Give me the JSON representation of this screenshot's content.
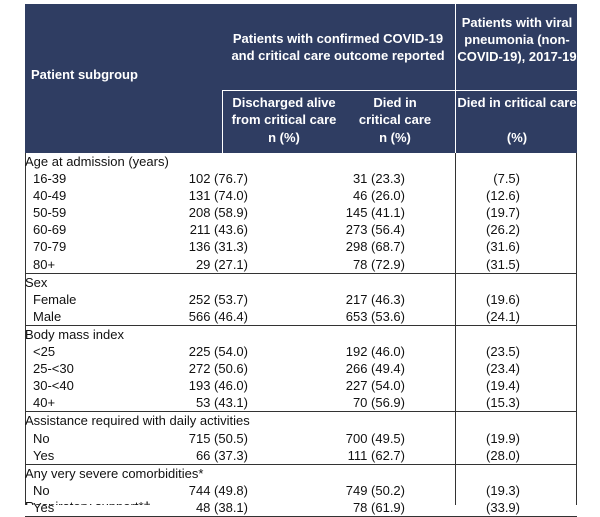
{
  "header": {
    "subgroup": "Patient subgroup",
    "covid_group": "Patients with confirmed COVID-19 and critical care outcome reported",
    "viral_group": "Patients with viral pneumonia (non-COVID-19), 2017-19",
    "col1_title": "Discharged alive from critical care",
    "col2_title": "Died in critical care",
    "col3_title": "Died in critical care",
    "col1_unit": "n (%)",
    "col2_unit": "n (%)",
    "col3_unit": "(%)"
  },
  "sections": [
    {
      "title": "Age at admission (years)",
      "rows": [
        {
          "label": "16-39",
          "c1": "102 (76.7)",
          "c2": "31 (23.3)",
          "c3": "(7.5)"
        },
        {
          "label": "40-49",
          "c1": "131 (74.0)",
          "c2": "46 (26.0)",
          "c3": "(12.6)"
        },
        {
          "label": "50-59",
          "c1": "208 (58.9)",
          "c2": "145 (41.1)",
          "c3": "(19.7)"
        },
        {
          "label": "60-69",
          "c1": "211 (43.6)",
          "c2": "273 (56.4)",
          "c3": "(26.2)"
        },
        {
          "label": "70-79",
          "c1": "136 (31.3)",
          "c2": "298 (68.7)",
          "c3": "(31.6)"
        },
        {
          "label": "80+",
          "c1": "29 (27.1)",
          "c2": "78 (72.9)",
          "c3": "(31.5)"
        }
      ]
    },
    {
      "title": "Sex",
      "rows": [
        {
          "label": "Female",
          "c1": "252 (53.7)",
          "c2": "217 (46.3)",
          "c3": "(19.6)"
        },
        {
          "label": "Male",
          "c1": "566 (46.4)",
          "c2": "653 (53.6)",
          "c3": "(24.1)"
        }
      ]
    },
    {
      "title": "Body mass index",
      "rows": [
        {
          "label": "<25",
          "c1": "225 (54.0)",
          "c2": "192 (46.0)",
          "c3": "(23.5)"
        },
        {
          "label": "25-<30",
          "c1": "272 (50.6)",
          "c2": "266 (49.4)",
          "c3": "(23.4)"
        },
        {
          "label": "30-<40",
          "c1": "193 (46.0)",
          "c2": "227 (54.0)",
          "c3": "(19.4)"
        },
        {
          "label": "40+",
          "c1": "53 (43.1)",
          "c2": "70 (56.9)",
          "c3": "(15.3)"
        }
      ]
    },
    {
      "title": "Assistance required with daily activities",
      "rows": [
        {
          "label": "No",
          "c1": "715 (50.5)",
          "c2": "700 (49.5)",
          "c3": "(19.9)"
        },
        {
          "label": "Yes",
          "c1": "66 (37.3)",
          "c2": "111 (62.7)",
          "c3": "(28.0)"
        }
      ]
    },
    {
      "title": "Any very severe comorbidities*",
      "rows": [
        {
          "label": "No",
          "c1": "744 (49.8)",
          "c2": "749 (50.2)",
          "c3": "(19.3)"
        },
        {
          "label": "Yes",
          "c1": "48 (38.1)",
          "c2": "78 (61.9)",
          "c3": "(33.9)"
        }
      ]
    }
  ],
  "cut_off_text": "Respiratory support*†"
}
